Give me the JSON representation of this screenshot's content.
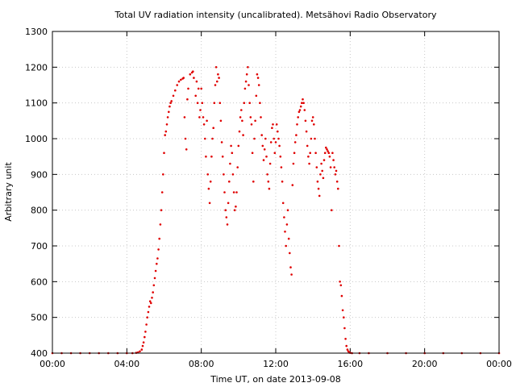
{
  "chart_data": {
    "type": "scatter",
    "title": "Total UV radiation intensity (uncalibrated). Metsähovi Radio Observatory",
    "xlabel": "Time UT, on date 2013-09-08",
    "ylabel": "Arbitrary unit",
    "xlim": [
      0,
      24
    ],
    "ylim": [
      400,
      1300
    ],
    "x_ticks": [
      0,
      4,
      8,
      12,
      16,
      20,
      24
    ],
    "x_tick_labels": [
      "00:00",
      "04:00",
      "08:00",
      "12:00",
      "16:00",
      "20:00",
      "00:00"
    ],
    "y_ticks": [
      400,
      500,
      600,
      700,
      800,
      900,
      1000,
      1100,
      1200,
      1300
    ],
    "y_tick_labels": [
      "400",
      "500",
      "600",
      "700",
      "800",
      "900",
      "1000",
      "1100",
      "1200",
      "1300"
    ],
    "grid": true,
    "marker_color": "#e00000",
    "series": [
      {
        "x_unit": "hours UT",
        "points": [
          [
            0.0,
            400
          ],
          [
            0.5,
            400
          ],
          [
            1.0,
            400
          ],
          [
            1.5,
            400
          ],
          [
            2.0,
            400
          ],
          [
            2.5,
            400
          ],
          [
            3.0,
            400
          ],
          [
            3.5,
            400
          ],
          [
            4.0,
            400
          ],
          [
            4.3,
            400
          ],
          [
            4.5,
            401
          ],
          [
            4.6,
            402
          ],
          [
            4.7,
            405
          ],
          [
            4.8,
            410
          ],
          [
            4.85,
            420
          ],
          [
            4.9,
            430
          ],
          [
            4.95,
            445
          ],
          [
            5.0,
            460
          ],
          [
            5.05,
            480
          ],
          [
            5.1,
            500
          ],
          [
            5.15,
            515
          ],
          [
            5.2,
            530
          ],
          [
            5.25,
            545
          ],
          [
            5.3,
            540
          ],
          [
            5.35,
            555
          ],
          [
            5.4,
            570
          ],
          [
            5.45,
            590
          ],
          [
            5.5,
            610
          ],
          [
            5.55,
            630
          ],
          [
            5.6,
            650
          ],
          [
            5.65,
            665
          ],
          [
            5.7,
            690
          ],
          [
            5.75,
            720
          ],
          [
            5.8,
            760
          ],
          [
            5.85,
            800
          ],
          [
            5.9,
            850
          ],
          [
            5.95,
            900
          ],
          [
            6.0,
            960
          ],
          [
            6.05,
            1010
          ],
          [
            6.1,
            1020
          ],
          [
            6.15,
            1040
          ],
          [
            6.2,
            1060
          ],
          [
            6.25,
            1075
          ],
          [
            6.3,
            1090
          ],
          [
            6.35,
            1100
          ],
          [
            6.4,
            1105
          ],
          [
            6.5,
            1120
          ],
          [
            6.6,
            1135
          ],
          [
            6.7,
            1150
          ],
          [
            6.8,
            1160
          ],
          [
            6.9,
            1165
          ],
          [
            7.0,
            1168
          ],
          [
            7.05,
            1170
          ],
          [
            7.1,
            1060
          ],
          [
            7.15,
            1000
          ],
          [
            7.2,
            970
          ],
          [
            7.25,
            1110
          ],
          [
            7.3,
            1140
          ],
          [
            7.4,
            1180
          ],
          [
            7.5,
            1185
          ],
          [
            7.55,
            1188
          ],
          [
            7.6,
            1170
          ],
          [
            7.7,
            1120
          ],
          [
            7.75,
            1160
          ],
          [
            7.8,
            1100
          ],
          [
            7.85,
            1140
          ],
          [
            7.9,
            1060
          ],
          [
            7.95,
            1080
          ],
          [
            8.0,
            1140
          ],
          [
            8.05,
            1100
          ],
          [
            8.1,
            1060
          ],
          [
            8.15,
            1040
          ],
          [
            8.2,
            1000
          ],
          [
            8.25,
            950
          ],
          [
            8.3,
            1050
          ],
          [
            8.35,
            900
          ],
          [
            8.4,
            860
          ],
          [
            8.45,
            820
          ],
          [
            8.5,
            880
          ],
          [
            8.55,
            950
          ],
          [
            8.6,
            1000
          ],
          [
            8.65,
            1030
          ],
          [
            8.7,
            1100
          ],
          [
            8.75,
            1150
          ],
          [
            8.8,
            1200
          ],
          [
            8.85,
            1160
          ],
          [
            8.9,
            1180
          ],
          [
            8.95,
            1170
          ],
          [
            9.0,
            1100
          ],
          [
            9.05,
            1050
          ],
          [
            9.1,
            990
          ],
          [
            9.15,
            950
          ],
          [
            9.2,
            900
          ],
          [
            9.25,
            850
          ],
          [
            9.3,
            800
          ],
          [
            9.35,
            780
          ],
          [
            9.4,
            760
          ],
          [
            9.45,
            820
          ],
          [
            9.5,
            880
          ],
          [
            9.55,
            930
          ],
          [
            9.6,
            980
          ],
          [
            9.65,
            960
          ],
          [
            9.7,
            900
          ],
          [
            9.75,
            850
          ],
          [
            9.8,
            800
          ],
          [
            9.85,
            810
          ],
          [
            9.9,
            850
          ],
          [
            9.95,
            920
          ],
          [
            10.0,
            980
          ],
          [
            10.05,
            1020
          ],
          [
            10.1,
            1060
          ],
          [
            10.15,
            1080
          ],
          [
            10.2,
            1050
          ],
          [
            10.25,
            1010
          ],
          [
            10.3,
            1100
          ],
          [
            10.35,
            1140
          ],
          [
            10.4,
            1160
          ],
          [
            10.45,
            1180
          ],
          [
            10.5,
            1200
          ],
          [
            10.55,
            1150
          ],
          [
            10.6,
            1100
          ],
          [
            10.65,
            1060
          ],
          [
            10.7,
            1040
          ],
          [
            10.75,
            960
          ],
          [
            10.8,
            880
          ],
          [
            10.85,
            1000
          ],
          [
            10.9,
            1050
          ],
          [
            10.95,
            1120
          ],
          [
            11.0,
            1180
          ],
          [
            11.05,
            1170
          ],
          [
            11.1,
            1150
          ],
          [
            11.15,
            1100
          ],
          [
            11.2,
            1060
          ],
          [
            11.25,
            1010
          ],
          [
            11.3,
            980
          ],
          [
            11.35,
            940
          ],
          [
            11.4,
            970
          ],
          [
            11.45,
            1000
          ],
          [
            11.5,
            950
          ],
          [
            11.55,
            900
          ],
          [
            11.6,
            880
          ],
          [
            11.65,
            860
          ],
          [
            11.7,
            930
          ],
          [
            11.75,
            990
          ],
          [
            11.8,
            1030
          ],
          [
            11.85,
            1040
          ],
          [
            11.9,
            1000
          ],
          [
            11.95,
            960
          ],
          [
            12.0,
            990
          ],
          [
            12.05,
            1040
          ],
          [
            12.1,
            1020
          ],
          [
            12.15,
            1000
          ],
          [
            12.2,
            980
          ],
          [
            12.25,
            950
          ],
          [
            12.3,
            920
          ],
          [
            12.35,
            880
          ],
          [
            12.4,
            820
          ],
          [
            12.45,
            780
          ],
          [
            12.5,
            740
          ],
          [
            12.55,
            700
          ],
          [
            12.6,
            760
          ],
          [
            12.65,
            800
          ],
          [
            12.7,
            720
          ],
          [
            12.75,
            680
          ],
          [
            12.8,
            640
          ],
          [
            12.85,
            620
          ],
          [
            12.9,
            870
          ],
          [
            12.95,
            930
          ],
          [
            13.0,
            960
          ],
          [
            13.05,
            990
          ],
          [
            13.1,
            1010
          ],
          [
            13.15,
            1040
          ],
          [
            13.2,
            1060
          ],
          [
            13.25,
            1075
          ],
          [
            13.3,
            1080
          ],
          [
            13.35,
            1090
          ],
          [
            13.4,
            1100
          ],
          [
            13.45,
            1110
          ],
          [
            13.5,
            1100
          ],
          [
            13.55,
            1080
          ],
          [
            13.6,
            1050
          ],
          [
            13.65,
            1020
          ],
          [
            13.7,
            980
          ],
          [
            13.75,
            950
          ],
          [
            13.8,
            930
          ],
          [
            13.85,
            960
          ],
          [
            13.9,
            1000
          ],
          [
            13.95,
            1050
          ],
          [
            14.0,
            1060
          ],
          [
            14.05,
            1040
          ],
          [
            14.1,
            1000
          ],
          [
            14.15,
            960
          ],
          [
            14.2,
            920
          ],
          [
            14.25,
            880
          ],
          [
            14.3,
            860
          ],
          [
            14.35,
            840
          ],
          [
            14.4,
            900
          ],
          [
            14.45,
            930
          ],
          [
            14.5,
            910
          ],
          [
            14.55,
            890
          ],
          [
            14.6,
            940
          ],
          [
            14.65,
            960
          ],
          [
            14.7,
            975
          ],
          [
            14.75,
            970
          ],
          [
            14.8,
            965
          ],
          [
            14.85,
            960
          ],
          [
            14.9,
            950
          ],
          [
            14.95,
            920
          ],
          [
            15.0,
            800
          ],
          [
            15.05,
            960
          ],
          [
            15.1,
            940
          ],
          [
            15.15,
            920
          ],
          [
            15.2,
            900
          ],
          [
            15.25,
            910
          ],
          [
            15.3,
            880
          ],
          [
            15.35,
            860
          ],
          [
            15.4,
            700
          ],
          [
            15.45,
            600
          ],
          [
            15.5,
            590
          ],
          [
            15.55,
            560
          ],
          [
            15.6,
            520
          ],
          [
            15.65,
            500
          ],
          [
            15.7,
            470
          ],
          [
            15.75,
            440
          ],
          [
            15.8,
            420
          ],
          [
            15.85,
            410
          ],
          [
            15.9,
            405
          ],
          [
            15.95,
            402
          ],
          [
            16.0,
            401
          ],
          [
            16.1,
            400
          ],
          [
            16.5,
            400
          ],
          [
            17.0,
            400
          ],
          [
            18.0,
            400
          ],
          [
            19.0,
            400
          ],
          [
            20.0,
            400
          ],
          [
            21.0,
            400
          ],
          [
            22.0,
            400
          ],
          [
            23.0,
            400
          ],
          [
            24.0,
            400
          ]
        ]
      }
    ]
  }
}
